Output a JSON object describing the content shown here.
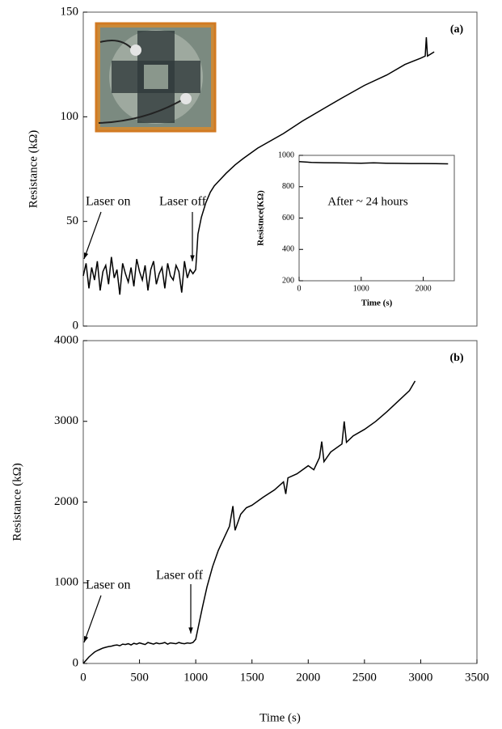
{
  "chart_data": [
    {
      "type": "line",
      "label": "(a)",
      "ylabel": "Resistance (kΩ)",
      "xlim": [
        0,
        3500
      ],
      "ylim": [
        0,
        150
      ],
      "yticks": [
        0,
        50,
        100,
        150
      ],
      "annotations": [
        "Laser on",
        "Laser off"
      ],
      "color": "#000000",
      "x": [
        0,
        25,
        50,
        75,
        100,
        125,
        150,
        175,
        200,
        225,
        250,
        275,
        300,
        325,
        350,
        375,
        400,
        425,
        450,
        475,
        500,
        525,
        550,
        575,
        600,
        625,
        650,
        675,
        700,
        725,
        750,
        775,
        800,
        825,
        850,
        875,
        900,
        925,
        950,
        975,
        1000,
        1020,
        1050,
        1090,
        1130,
        1165,
        1200,
        1270,
        1350,
        1420,
        1550,
        1780,
        1950,
        2140,
        2300,
        2500,
        2700,
        2860,
        3000,
        3040,
        3050,
        3060,
        3120
      ],
      "values": [
        24,
        30,
        18,
        28,
        22,
        31,
        17,
        26,
        29,
        20,
        33,
        23,
        27,
        15,
        30,
        25,
        21,
        28,
        19,
        32,
        26,
        22,
        29,
        17,
        27,
        31,
        20,
        25,
        28,
        18,
        30,
        24,
        22,
        29,
        26,
        16,
        31,
        23,
        27,
        25,
        27,
        44,
        52,
        59,
        64,
        67,
        69,
        73,
        77,
        80,
        85,
        92,
        98,
        104,
        109,
        115,
        120,
        125,
        128,
        129,
        138,
        129,
        131
      ]
    },
    {
      "type": "line",
      "ylabel": "Resistnce(KΩ)",
      "xlabel": "Time (s)",
      "xlim": [
        0,
        2500
      ],
      "xticks": [
        0,
        1000,
        2000
      ],
      "ylim": [
        200,
        1000
      ],
      "yticks": [
        200,
        400,
        600,
        800,
        1000
      ],
      "annotations": [
        "After ~ 24 hours"
      ],
      "color": "#000000",
      "x": [
        0,
        200,
        400,
        600,
        800,
        1000,
        1200,
        1400,
        1600,
        1800,
        2000,
        2200,
        2400
      ],
      "values": [
        960,
        955,
        953,
        952,
        951,
        950,
        952,
        950,
        949,
        948,
        948,
        947,
        946
      ]
    },
    {
      "type": "line",
      "label": "(b)",
      "ylabel": "Resistance (kΩ)",
      "xlabel": "Time (s)",
      "xlim": [
        0,
        3500
      ],
      "xticks": [
        0,
        500,
        1000,
        1500,
        2000,
        2500,
        3000,
        3500
      ],
      "ylim": [
        0,
        4000
      ],
      "yticks": [
        0,
        1000,
        2000,
        3000,
        4000
      ],
      "annotations": [
        "Laser on",
        "Laser off"
      ],
      "color": "#000000",
      "x": [
        0,
        25,
        50,
        75,
        100,
        125,
        150,
        175,
        200,
        225,
        250,
        275,
        300,
        325,
        350,
        375,
        400,
        425,
        450,
        475,
        500,
        525,
        550,
        575,
        600,
        625,
        650,
        675,
        700,
        725,
        750,
        775,
        800,
        825,
        850,
        875,
        900,
        925,
        950,
        975,
        1000,
        1030,
        1060,
        1100,
        1150,
        1200,
        1250,
        1300,
        1330,
        1350,
        1400,
        1450,
        1500,
        1600,
        1700,
        1780,
        1800,
        1820,
        1900,
        2000,
        2050,
        2100,
        2120,
        2140,
        2200,
        2300,
        2320,
        2340,
        2400,
        2500,
        2600,
        2700,
        2800,
        2900,
        2950
      ],
      "values": [
        0,
        40,
        80,
        110,
        140,
        160,
        175,
        190,
        200,
        210,
        215,
        225,
        230,
        220,
        240,
        235,
        245,
        230,
        250,
        240,
        255,
        245,
        235,
        260,
        250,
        240,
        255,
        245,
        250,
        260,
        240,
        255,
        250,
        245,
        260,
        250,
        245,
        255,
        250,
        260,
        300,
        500,
        700,
        950,
        1200,
        1400,
        1550,
        1700,
        1950,
        1650,
        1850,
        1930,
        1960,
        2060,
        2150,
        2250,
        2100,
        2300,
        2350,
        2450,
        2400,
        2550,
        2750,
        2500,
        2620,
        2720,
        3000,
        2740,
        2820,
        2900,
        3000,
        3120,
        3250,
        3380,
        3500
      ]
    }
  ]
}
